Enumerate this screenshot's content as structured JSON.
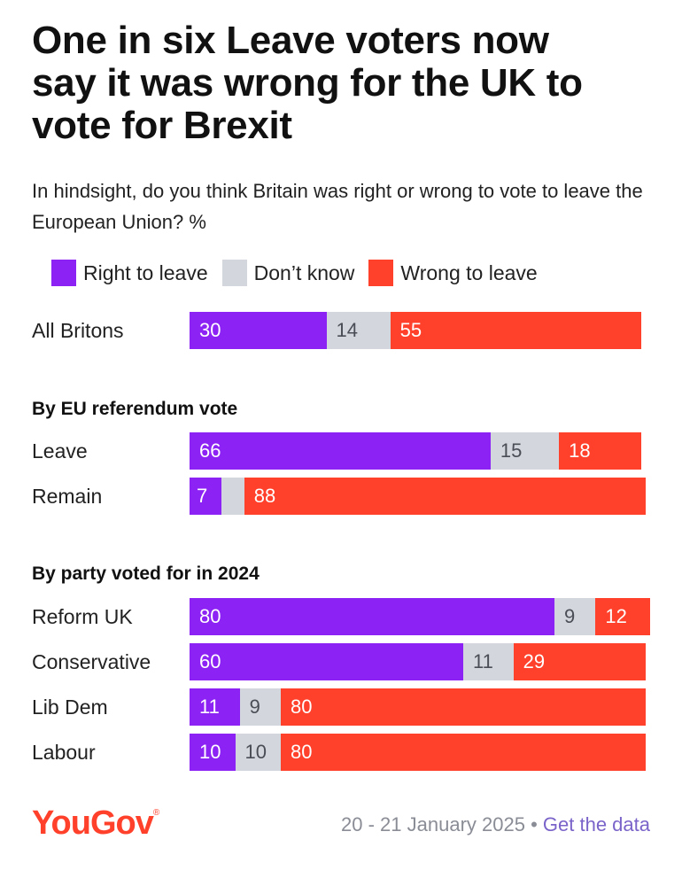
{
  "title": [
    "One in six Leave voters now",
    "say it was wrong for the UK to",
    "vote for Brexit"
  ],
  "subtitle": "In hindsight, do you think Britain was right or wrong to vote to leave the European Union? %",
  "legend": [
    {
      "label": "Right to leave",
      "color": "#8d22f4"
    },
    {
      "label": "Don’t know",
      "color": "#d3d6dd"
    },
    {
      "label": "Wrong to leave",
      "color": "#ff412c"
    }
  ],
  "chart_data": {
    "type": "bar",
    "orientation": "horizontal-stacked",
    "title": "One in six Leave voters now say it was wrong for the UK to vote for Brexit",
    "unit": "%",
    "series_names": [
      "Right to leave",
      "Don’t know",
      "Wrong to leave"
    ],
    "groups": [
      {
        "heading": "",
        "rows": [
          {
            "label": "All Britons",
            "values": [
              30,
              14,
              55
            ]
          }
        ]
      },
      {
        "heading": "By EU referendum vote",
        "rows": [
          {
            "label": "Leave",
            "values": [
              66,
              15,
              18
            ]
          },
          {
            "label": "Remain",
            "values": [
              7,
              5,
              88
            ],
            "hide_labels": [
              false,
              true,
              false
            ]
          }
        ]
      },
      {
        "heading": "By party voted for in 2024",
        "rows": [
          {
            "label": "Reform UK",
            "values": [
              80,
              9,
              12
            ]
          },
          {
            "label": "Conservative",
            "values": [
              60,
              11,
              29
            ]
          },
          {
            "label": "Lib Dem",
            "values": [
              11,
              9,
              80
            ]
          },
          {
            "label": "Labour",
            "values": [
              10,
              10,
              80
            ]
          }
        ]
      }
    ]
  },
  "footer": {
    "logo": "YouGov",
    "logo_mark": "®",
    "date": "20 - 21 January 2025",
    "separator": " • ",
    "link": "Get the data"
  }
}
